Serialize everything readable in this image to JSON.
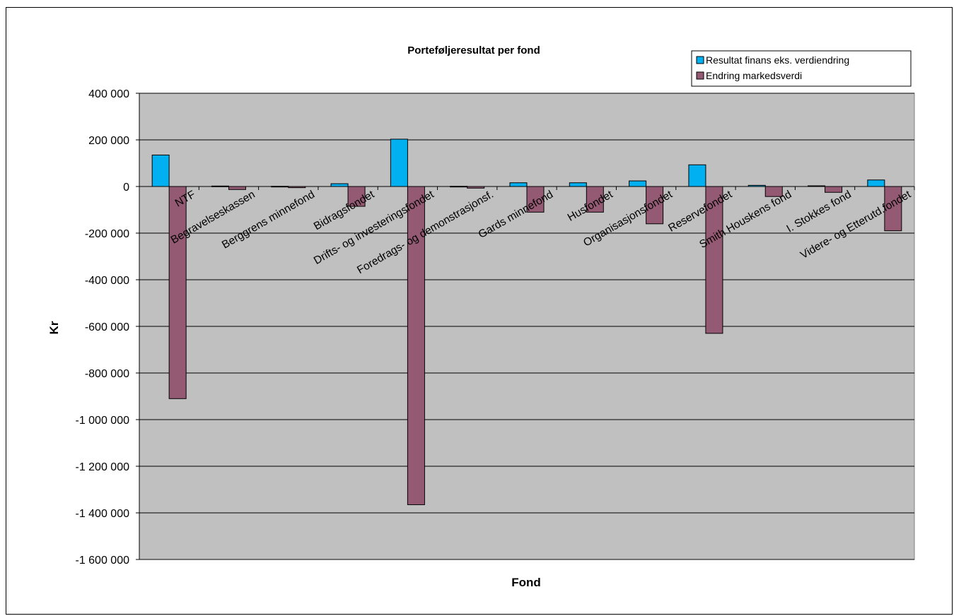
{
  "chart_data": {
    "type": "bar",
    "title": "Porteføljeresultat per fond",
    "xlabel": "Fond",
    "ylabel": "Kr",
    "ylim": [
      -1600000,
      400000
    ],
    "yticks": [
      400000,
      200000,
      0,
      -200000,
      -400000,
      -600000,
      -800000,
      -1000000,
      -1200000,
      -1400000,
      -1600000
    ],
    "ytick_labels": [
      "400 000",
      "200 000",
      "0",
      "-200 000",
      "-400 000",
      "-600 000",
      "-800 000",
      "-1 000 000",
      "-1 200 000",
      "-1 400 000",
      "-1 600 000"
    ],
    "grid": true,
    "legend_position": "top-right",
    "categories": [
      "NTF",
      "Begravelseskassen",
      "Berggrens minnefond",
      "Bidragsfondet",
      "Drifts- og investeringsfondet",
      "Foredrags- og demonstrasjonsf.",
      "Gards minnefond",
      "Husfondet",
      "Organisasjonsfondet",
      "Reservefondet",
      "Smith Houskens fond",
      "I. Stokkes fond",
      "Videre- og Etterutd.fondet"
    ],
    "series": [
      {
        "name": "Resultat finans eks. verdiendring",
        "color": "#00b0f0",
        "values": [
          135000,
          2000,
          1000,
          12000,
          203000,
          1000,
          16000,
          16000,
          24000,
          93000,
          5000,
          3000,
          28000
        ]
      },
      {
        "name": "Endring markedsverdi",
        "color": "#955a73",
        "values": [
          -910000,
          -13000,
          -5000,
          -85000,
          -1365000,
          -7000,
          -110000,
          -110000,
          -160000,
          -630000,
          -43000,
          -25000,
          -190000
        ]
      }
    ],
    "plot_background": "#c0c0c0"
  }
}
